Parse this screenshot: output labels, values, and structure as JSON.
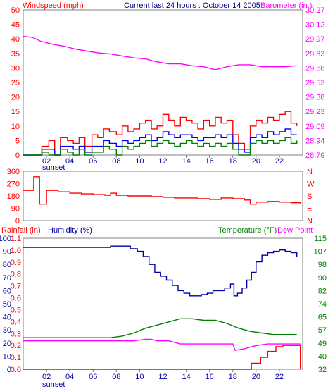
{
  "header": {
    "windspeed_label": "Windspeed (mph)",
    "current_label": "Current last 24 hours : October 14 2005",
    "barometer_label": "Barometer (in.)"
  },
  "colors": {
    "red": "#ff0000",
    "blue": "#0000ff",
    "green": "#008000",
    "magenta": "#ff00ff",
    "navy": "#000080",
    "darkblue": "#0000a0"
  },
  "x_axis": {
    "hour_ticks": [
      "02",
      "04",
      "06",
      "08",
      "10",
      "12",
      "14",
      "16",
      "18",
      "20",
      "22"
    ],
    "sunset_label": "sunset",
    "hour_range": [
      0.0,
      24.0
    ]
  },
  "chart_data": [
    {
      "id": "wind",
      "type": "line",
      "y_left": {
        "ticks": [
          "0",
          "5",
          "10",
          "15",
          "20",
          "25",
          "30",
          "35",
          "40",
          "45",
          "50"
        ],
        "range": [
          0,
          50
        ]
      },
      "y_right": {
        "ticks": [
          "28.79",
          "28.94",
          "29.09",
          "29.23",
          "29.38",
          "29.53",
          "29.68",
          "29.83",
          "29.97",
          "30.12",
          "30.27"
        ],
        "range": [
          28.79,
          30.27
        ]
      },
      "series": [
        {
          "id": "barometer",
          "color": "#ff00ff",
          "x": [
            0.0,
            0.8,
            1.5,
            2.5,
            3.5,
            4.5,
            5.5,
            6.5,
            7.5,
            8.5,
            9.5,
            10.5,
            11.5,
            12.5,
            13.5,
            14.5,
            15.5,
            16.5,
            17.5,
            18.5,
            19.5,
            20.5,
            21.5,
            22.5,
            23.5
          ],
          "y": [
            30.0,
            29.99,
            29.95,
            29.92,
            29.9,
            29.87,
            29.85,
            29.83,
            29.82,
            29.8,
            29.78,
            29.77,
            29.74,
            29.72,
            29.72,
            29.7,
            29.69,
            29.66,
            29.69,
            29.71,
            29.71,
            29.69,
            29.69,
            29.69,
            29.7
          ]
        },
        {
          "id": "wind_gust",
          "color": "#ff0000",
          "x": [
            0.0,
            1.0,
            1.6,
            2.2,
            2.7,
            3.2,
            3.8,
            4.3,
            4.8,
            5.3,
            5.9,
            6.4,
            6.9,
            7.4,
            8.0,
            8.5,
            9.0,
            9.5,
            10.0,
            10.5,
            11.0,
            11.5,
            12.0,
            12.5,
            13.0,
            13.5,
            14.0,
            14.5,
            15.0,
            15.5,
            16.0,
            16.5,
            17.0,
            17.5,
            18.0,
            18.5,
            19.0,
            19.5,
            20.0,
            20.5,
            21.0,
            21.5,
            22.0,
            22.5,
            23.0,
            23.5
          ],
          "y": [
            0,
            0,
            3,
            5,
            0,
            6,
            5,
            4,
            6,
            3,
            7,
            6,
            9,
            8,
            7,
            10,
            8,
            9,
            11,
            12,
            9,
            10,
            14,
            12,
            10,
            13,
            12,
            11,
            9,
            12,
            10,
            13,
            11,
            12,
            7,
            4,
            2,
            10,
            12,
            11,
            13,
            12,
            14,
            15,
            11,
            10
          ]
        },
        {
          "id": "wind_avg",
          "color": "#0000ff",
          "x": [
            0.0,
            1.0,
            1.6,
            2.2,
            2.7,
            3.2,
            3.8,
            4.3,
            4.8,
            5.3,
            5.9,
            6.4,
            6.9,
            7.4,
            8.0,
            8.5,
            9.0,
            9.5,
            10.0,
            10.5,
            11.0,
            11.5,
            12.0,
            12.5,
            13.0,
            13.5,
            14.0,
            14.5,
            15.0,
            15.5,
            16.0,
            16.5,
            17.0,
            17.5,
            18.0,
            18.5,
            19.0,
            19.5,
            20.0,
            20.5,
            21.0,
            21.5,
            22.0,
            22.5,
            23.0,
            23.5
          ],
          "y": [
            0,
            0,
            2,
            2,
            0,
            3,
            3,
            2,
            3,
            1,
            3,
            3,
            5,
            4,
            3,
            5,
            4,
            5,
            6,
            7,
            5,
            6,
            8,
            7,
            6,
            7,
            7,
            6,
            5,
            6,
            6,
            7,
            6,
            7,
            4,
            2,
            1,
            6,
            7,
            6,
            8,
            7,
            8,
            9,
            7,
            7
          ]
        },
        {
          "id": "wind_min",
          "color": "#008000",
          "x": [
            0.0,
            1.0,
            1.6,
            2.2,
            2.7,
            3.2,
            3.8,
            4.3,
            4.8,
            5.3,
            5.9,
            6.4,
            6.9,
            7.4,
            8.0,
            8.5,
            9.0,
            9.5,
            10.0,
            10.5,
            11.0,
            11.5,
            12.0,
            12.5,
            13.0,
            13.5,
            14.0,
            14.5,
            15.0,
            15.5,
            16.0,
            16.5,
            17.0,
            17.5,
            18.0,
            18.5,
            19.0,
            19.5,
            20.0,
            20.5,
            21.0,
            21.5,
            22.0,
            22.5,
            23.0,
            23.5
          ],
          "y": [
            0,
            0,
            1,
            0,
            0,
            2,
            1,
            0,
            2,
            0,
            1,
            1,
            3,
            2,
            0,
            3,
            2,
            3,
            4,
            5,
            3,
            4,
            5,
            4,
            3,
            4,
            5,
            4,
            3,
            4,
            3,
            4,
            3,
            4,
            2,
            0,
            0,
            4,
            5,
            4,
            5,
            4,
            5,
            6,
            4,
            5
          ]
        }
      ]
    },
    {
      "id": "direction",
      "type": "line",
      "y_left": {
        "ticks": [
          "0",
          "90",
          "180",
          "270",
          "360"
        ],
        "range": [
          0,
          360
        ]
      },
      "y_right": {
        "ticks": [
          "N",
          "E",
          "S",
          "W",
          "N"
        ]
      },
      "series": [
        {
          "id": "wind_dir",
          "color": "#ff0000",
          "x": [
            0.0,
            0.8,
            0.9,
            1.3,
            1.4,
            2.0,
            3.0,
            4.0,
            5.0,
            6.0,
            7.0,
            7.5,
            8.0,
            9.0,
            10.0,
            11.0,
            12.0,
            13.0,
            14.0,
            15.0,
            16.0,
            17.0,
            18.0,
            19.0,
            19.5,
            20.0,
            21.0,
            22.0,
            23.0,
            23.8
          ],
          "y": [
            220,
            220,
            320,
            320,
            120,
            220,
            210,
            200,
            195,
            190,
            185,
            200,
            185,
            180,
            180,
            175,
            170,
            165,
            165,
            160,
            155,
            165,
            160,
            150,
            120,
            135,
            140,
            135,
            130,
            125
          ]
        }
      ]
    },
    {
      "id": "climate",
      "type": "line",
      "labels": {
        "rainfall": "Rainfall (in)",
        "humidity": "Humidity (%)",
        "temperature": "Temperature (°F)",
        "dewpoint": "Dew Point"
      },
      "y_left_humidity": {
        "ticks": [
          "0",
          "10",
          "20",
          "30",
          "40",
          "50",
          "60",
          "70",
          "80",
          "90",
          "100"
        ],
        "range": [
          0,
          100
        ]
      },
      "y_left_rain": {
        "ticks": [
          "0.0",
          "0.1",
          "0.2",
          "0.3",
          "0.4",
          "0.5",
          "0.6",
          "0.7",
          "0.8",
          "0.9",
          "1.0",
          "1.1"
        ],
        "range": [
          0.0,
          1.1
        ]
      },
      "y_right_temp": {
        "ticks": [
          "32",
          "40",
          "49",
          "57",
          "65",
          "74",
          "82",
          "90",
          "98",
          "107",
          "115"
        ],
        "range": [
          32,
          115
        ]
      },
      "series": [
        {
          "id": "humidity",
          "color": "#0000a0",
          "x": [
            0.0,
            2.0,
            4.0,
            6.0,
            7.5,
            8.5,
            9.2,
            9.8,
            10.3,
            10.8,
            11.3,
            11.8,
            12.3,
            12.8,
            13.3,
            13.8,
            14.3,
            14.8,
            15.3,
            15.8,
            16.3,
            16.8,
            17.3,
            17.8,
            18.1,
            18.4,
            18.8,
            19.2,
            19.6,
            20.0,
            20.5,
            21.0,
            21.5,
            22.0,
            22.5,
            23.0,
            23.5
          ],
          "y": [
            93,
            93,
            93,
            93,
            94,
            94,
            92,
            90,
            86,
            80,
            74,
            71,
            68,
            64,
            60,
            58,
            56,
            56,
            57,
            58,
            60,
            60,
            62,
            65,
            56,
            58,
            62,
            68,
            74,
            82,
            87,
            89,
            90,
            91,
            90,
            89,
            86
          ]
        },
        {
          "id": "temperature",
          "color": "#008000",
          "x": [
            0.0,
            2.0,
            4.0,
            6.0,
            7.5,
            8.5,
            9.5,
            10.5,
            11.5,
            12.5,
            13.5,
            14.5,
            15.5,
            16.5,
            17.5,
            18.5,
            19.5,
            20.5,
            21.5,
            22.5,
            23.5
          ],
          "y": [
            52,
            52,
            52,
            52,
            52,
            53,
            55,
            58,
            60,
            62,
            64,
            64,
            63,
            63,
            61,
            58,
            56,
            55,
            54,
            54,
            54
          ]
        },
        {
          "id": "dewpoint",
          "color": "#ff00ff",
          "x": [
            0.0,
            2.0,
            4.0,
            6.0,
            7.5,
            8.5,
            9.5,
            10.5,
            11.0,
            11.5,
            12.5,
            13.5,
            14.5,
            15.5,
            16.5,
            17.5,
            18.0,
            18.2,
            19.0,
            19.5,
            20.0,
            21.0,
            22.0,
            23.0,
            23.8
          ],
          "y": [
            50,
            50,
            50,
            50,
            50,
            50,
            50,
            51,
            51,
            50,
            50,
            48,
            48,
            48,
            48,
            48,
            48,
            44,
            45,
            46,
            47,
            48,
            48,
            48,
            48
          ]
        },
        {
          "id": "rainfall",
          "color": "#ff0000",
          "x": [
            0.0,
            19.6,
            19.6,
            20.4,
            20.4,
            21.0,
            21.0,
            21.7,
            21.7,
            22.3,
            22.3,
            23.8,
            23.8
          ],
          "y": [
            0.0,
            0.0,
            0.05,
            0.05,
            0.1,
            0.1,
            0.15,
            0.15,
            0.19,
            0.19,
            0.2,
            0.2,
            0.0
          ]
        }
      ]
    }
  ]
}
